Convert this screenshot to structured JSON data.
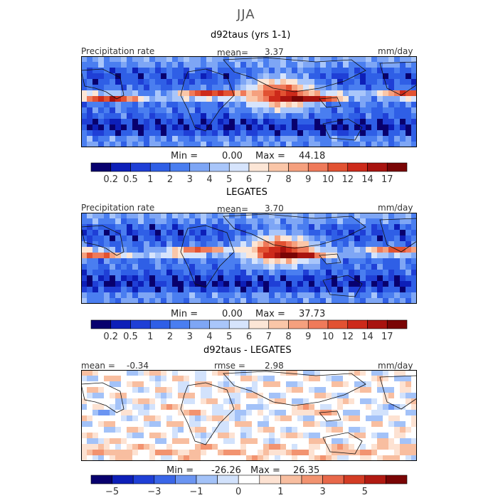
{
  "season": "JJA",
  "colors": {
    "abs_scale": [
      "#08006e",
      "#0d1fb8",
      "#1f3fd6",
      "#2f5fe6",
      "#4a7ef0",
      "#7ea6f5",
      "#a9c6fa",
      "#d6e4fc",
      "#fce6d6",
      "#fac6a8",
      "#f5a07e",
      "#ef7a5a",
      "#e25232",
      "#cd2a1a",
      "#a8130f",
      "#7a0505"
    ],
    "diff_scale": [
      "#08006e",
      "#0d1fb8",
      "#1f3fd6",
      "#3a66e8",
      "#6b95f2",
      "#a3c2f8",
      "#d2e2fc",
      "#ffffff",
      "#fde2d2",
      "#f8bea0",
      "#f29370",
      "#e8684a",
      "#d33c24",
      "#b11a12",
      "#7a0505"
    ],
    "land": "#111111"
  },
  "panels": [
    {
      "title": "d92taus (yrs 1-1)",
      "left_label": "Precipitation rate",
      "stat_label": "mean=",
      "stat_value": "3.37",
      "units": "mm/day",
      "min_label": "Min =",
      "min_value": "0.00",
      "max_label": "Max =",
      "max_value": "44.18",
      "ticks": [
        "0.2",
        "0.5",
        "1",
        "2",
        "3",
        "4",
        "5",
        "6",
        "7",
        "8",
        "9",
        "10",
        "12",
        "14",
        "17"
      ],
      "field_min": 0.0,
      "field_max": 44.18,
      "field_mean": 3.37
    },
    {
      "title": "LEGATES",
      "left_label": "Precipitation rate",
      "stat_label": "mean=",
      "stat_value": "3.70",
      "units": "mm/day",
      "min_label": "Min =",
      "min_value": "0.00",
      "max_label": "Max =",
      "max_value": "37.73",
      "ticks": [
        "0.2",
        "0.5",
        "1",
        "2",
        "3",
        "4",
        "5",
        "6",
        "7",
        "8",
        "9",
        "10",
        "12",
        "14",
        "17"
      ],
      "field_min": 0.0,
      "field_max": 37.73,
      "field_mean": 3.7
    },
    {
      "title": "d92taus - LEGATES",
      "left_label": "mean =",
      "left_value": "-0.34",
      "stat_label": "rmse =",
      "stat_value": "2.98",
      "units": "mm/day",
      "min_label": "Min =",
      "min_value": "-26.26",
      "max_label": "Max =",
      "max_value": "26.35",
      "ticks": [
        "−5",
        "",
        "−3",
        "",
        "−1",
        "",
        "0",
        "",
        "1",
        "",
        "3",
        "",
        "5",
        ""
      ],
      "field_min": -26.26,
      "field_max": 26.35,
      "field_mean": -0.34
    }
  ]
}
